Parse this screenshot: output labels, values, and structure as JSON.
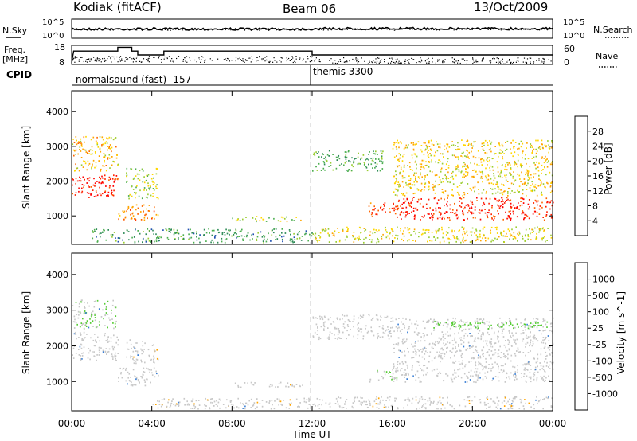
{
  "header": {
    "radar_title": "Kodiak (fitACF)",
    "beam": "Beam 06",
    "date": "13/Oct/2009"
  },
  "noise_panel": {
    "left_label": "N.Sky",
    "right_label": "N.Search",
    "left_ticks": [
      "10^5",
      "10^0"
    ],
    "right_ticks": [
      "10^5",
      "10^0"
    ]
  },
  "freq_panel": {
    "left_label_line1": "Freq.",
    "left_label_line2": "[MHz]",
    "left_ticks": [
      "18",
      "8"
    ],
    "right_label": "Nave",
    "right_ticks": [
      "60",
      "0"
    ],
    "cpid_label": "CPID"
  },
  "cpid_segments": [
    {
      "label": "normalsound (fast) -157",
      "start_hour": 0
    },
    {
      "label": "themis 3300",
      "start_hour": 12
    }
  ],
  "power_panel": {
    "ylabel": "Slant Range [km]",
    "yticks": [
      "1000",
      "2000",
      "3000",
      "4000"
    ],
    "colorbar_label": "Power [dB]",
    "colorbar_ticks": [
      "28",
      "24",
      "20",
      "16",
      "12",
      "8",
      "4"
    ],
    "colors": [
      "#0000ff",
      "#1f4fb0",
      "#2e8b57",
      "#4caf50",
      "#9acd32",
      "#ffd700",
      "#ffa500",
      "#ff6600",
      "#ff2200",
      "#ff0000"
    ]
  },
  "velocity_panel": {
    "ylabel": "Slant Range [km]",
    "yticks": [
      "1000",
      "2000",
      "3000",
      "4000"
    ],
    "colorbar_label": "Velocity [m s^-1]",
    "colorbar_ticks": [
      "1000",
      "500",
      "100",
      "25",
      "-25",
      "-100",
      "-500",
      "-1000"
    ],
    "colors": [
      "#2a2acc",
      "#3a7fd6",
      "#2e8b57",
      "#55cc33",
      "#c8c8c8",
      "#ffa500",
      "#ff7f00",
      "#ff4400",
      "#ff0000"
    ]
  },
  "xaxis": {
    "ticks": [
      "00:00",
      "04:00",
      "08:00",
      "12:00",
      "16:00",
      "20:00",
      "00:00"
    ],
    "label": "Time UT"
  },
  "chart_data": [
    {
      "type": "heatmap",
      "title": "Power [dB]",
      "xlabel": "Time UT",
      "ylabel": "Slant Range [km]",
      "xlim_hours": [
        0,
        24
      ],
      "ylim_km": [
        180,
        4600
      ],
      "clim": [
        0,
        30
      ],
      "regions": [
        {
          "t0": 0.0,
          "t1": 2.3,
          "r0": 1550,
          "r1": 2200,
          "value": 27
        },
        {
          "t0": 0.0,
          "t1": 2.3,
          "r0": 2300,
          "r1": 3300,
          "value": 18
        },
        {
          "t0": 2.3,
          "t1": 4.3,
          "r0": 900,
          "r1": 1350,
          "value": 21
        },
        {
          "t0": 2.7,
          "t1": 4.3,
          "r0": 1500,
          "r1": 2400,
          "value": 14
        },
        {
          "t0": 8.0,
          "t1": 11.5,
          "r0": 850,
          "r1": 1000,
          "value": 15
        },
        {
          "t0": 1.0,
          "t1": 12.0,
          "r0": 250,
          "r1": 650,
          "value": 9
        },
        {
          "t0": 12.0,
          "t1": 15.5,
          "r0": 2300,
          "r1": 2900,
          "value": 10
        },
        {
          "t0": 14.8,
          "t1": 16.5,
          "r0": 1000,
          "r1": 1400,
          "value": 24
        },
        {
          "t0": 16.0,
          "t1": 24.0,
          "r0": 900,
          "r1": 1550,
          "value": 26
        },
        {
          "t0": 16.0,
          "t1": 24.0,
          "r0": 1600,
          "r1": 3200,
          "value": 17
        },
        {
          "t0": 12.0,
          "t1": 24.0,
          "r0": 250,
          "r1": 700,
          "value": 16
        }
      ]
    },
    {
      "type": "heatmap",
      "title": "Velocity [m s^-1]",
      "xlabel": "Time UT",
      "ylabel": "Slant Range [km]",
      "xlim_hours": [
        0,
        24
      ],
      "ylim_km": [
        180,
        4600
      ],
      "clim": [
        -1000,
        1000
      ],
      "regions": [
        {
          "t0": 0.0,
          "t1": 2.3,
          "r0": 2500,
          "r1": 3300,
          "value": -100
        },
        {
          "t0": 0.0,
          "t1": 2.3,
          "r0": 1600,
          "r1": 2400,
          "value": 0
        },
        {
          "t0": 2.3,
          "t1": 4.3,
          "r0": 900,
          "r1": 1400,
          "value": 0
        },
        {
          "t0": 2.7,
          "t1": 4.3,
          "r0": 1500,
          "r1": 2200,
          "value": 60
        },
        {
          "t0": 8.0,
          "t1": 11.5,
          "r0": 850,
          "r1": 1000,
          "value": 60
        },
        {
          "t0": 4.0,
          "t1": 12.0,
          "r0": 250,
          "r1": 550,
          "value": 60
        },
        {
          "t0": 12.0,
          "t1": 16.0,
          "r0": 2200,
          "r1": 2900,
          "value": 0
        },
        {
          "t0": 14.8,
          "t1": 16.2,
          "r0": 1000,
          "r1": 1350,
          "value": -100
        },
        {
          "t0": 16.0,
          "t1": 24.0,
          "r0": 1000,
          "r1": 1600,
          "value": 0
        },
        {
          "t0": 16.0,
          "t1": 24.0,
          "r0": 1650,
          "r1": 2800,
          "value": 0
        },
        {
          "t0": 18.0,
          "t1": 24.0,
          "r0": 2500,
          "r1": 2700,
          "value": -200
        },
        {
          "t0": 12.0,
          "t1": 24.0,
          "r0": 250,
          "r1": 600,
          "value": 60
        }
      ]
    }
  ]
}
